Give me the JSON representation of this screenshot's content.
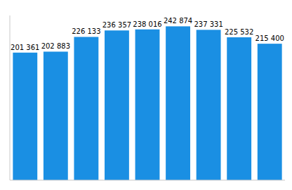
{
  "chart_data": {
    "type": "bar",
    "categories": [
      null,
      null,
      null,
      null,
      null,
      null,
      null,
      null,
      null
    ],
    "values": [
      201361,
      202883,
      226133,
      236357,
      238016,
      242874,
      237331,
      225532,
      215400
    ],
    "value_labels": [
      "201 361",
      "202 883",
      "226 133",
      "236 357",
      "238 016",
      "242 874",
      "237 331",
      "225 532",
      "215 400"
    ],
    "data_labels": true,
    "color": "#1a8fe3",
    "ylim": [
      0,
      260000
    ],
    "yticks": [],
    "grid": false,
    "tick_labels": false
  }
}
